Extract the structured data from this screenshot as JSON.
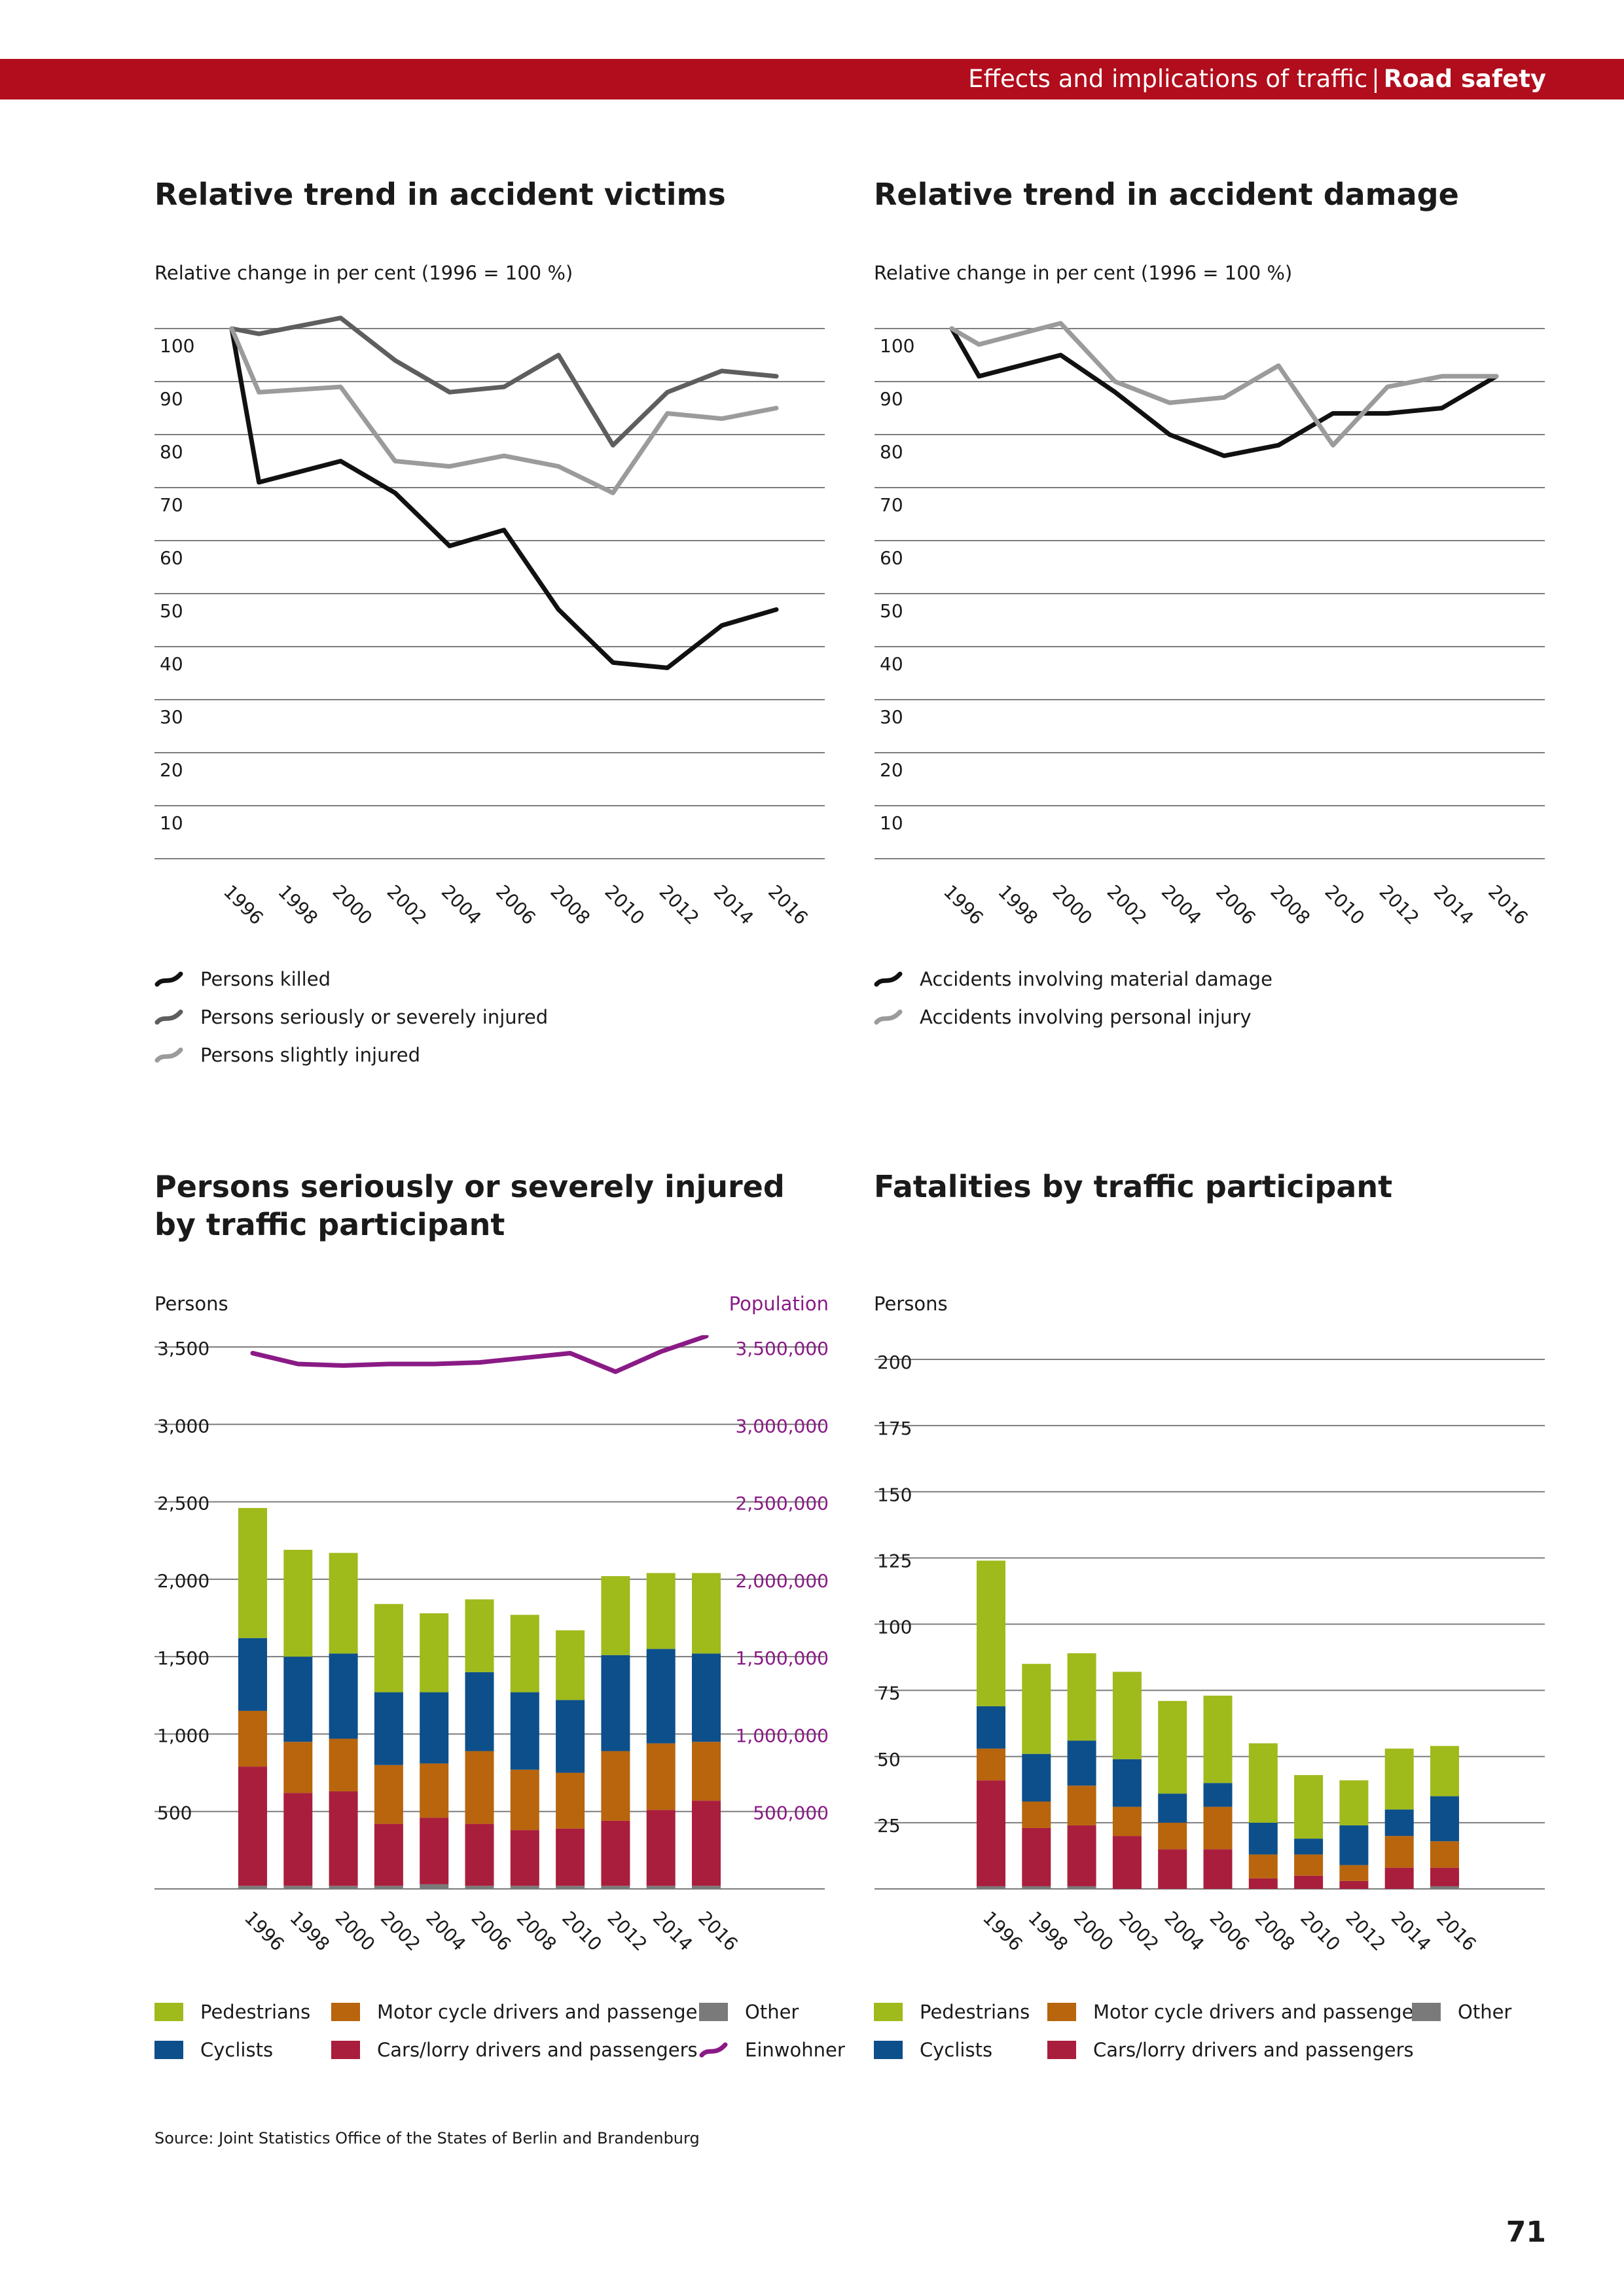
{
  "header": {
    "section": "Effects and implications of traffic",
    "separator": "|",
    "topic": "Road safety"
  },
  "colors": {
    "brand_red": "#b10d1c",
    "pedestrians": "#9fba1b",
    "cyclists": "#0d4f8b",
    "motorcycle": "#b8650d",
    "cars": "#a91e3c",
    "other": "#7a7a7a",
    "population": "#8a1a85",
    "killed": "#111111",
    "serious": "#5e5e5e",
    "slight": "#9b9b9b",
    "grid": "#7d7d7d"
  },
  "panels": {
    "victims": {
      "title": "Relative trend in accident victims",
      "subtitle": "Relative change in per cent (1996 = 100 %)"
    },
    "damage": {
      "title": "Relative trend in accident damage",
      "subtitle": "Relative change in per cent (1996 = 100 %)"
    },
    "injured": {
      "title_line1": "Persons seriously or severely injured",
      "title_line2": "by traffic participant",
      "left_axis_label": "Persons",
      "right_axis_label": "Population"
    },
    "fatalities": {
      "title": "Fatalities by traffic participant",
      "left_axis_label": "Persons"
    }
  },
  "chart_data": [
    {
      "id": "victims",
      "type": "line",
      "title": "Relative trend in accident victims",
      "ylabel": "Relative change in per cent (1996 = 100 %)",
      "ylim": [
        0,
        100
      ],
      "yticks": [
        10,
        20,
        30,
        40,
        50,
        60,
        70,
        80,
        90,
        100
      ],
      "x": [
        "1996",
        "1997",
        "1998",
        "1999",
        "2000",
        "2001",
        "2002",
        "2003",
        "2004",
        "2005",
        "2006",
        "2007",
        "2008",
        "2009",
        "2010",
        "2011",
        "2012",
        "2013",
        "2014",
        "2015",
        "2016"
      ],
      "xtick_labels": [
        "1996",
        "1998",
        "2000",
        "2002",
        "2004",
        "2006",
        "2008",
        "2010",
        "2012",
        "2014",
        "2016"
      ],
      "grid": true,
      "legend_position": "bottom",
      "series": [
        {
          "name": "Persons killed",
          "color": "#111111",
          "values": [
            100,
            71,
            null,
            null,
            75,
            null,
            69,
            null,
            59,
            null,
            62,
            null,
            47,
            null,
            37,
            null,
            36,
            null,
            44,
            null,
            47
          ]
        },
        {
          "name": "Persons seriously or severely injured",
          "color": "#5e5e5e",
          "values": [
            100,
            99,
            null,
            null,
            102,
            null,
            94,
            null,
            88,
            null,
            89,
            null,
            95,
            null,
            78,
            null,
            88,
            null,
            92,
            null,
            91
          ]
        },
        {
          "name": "Persons slightly injured",
          "color": "#9b9b9b",
          "values": [
            100,
            88,
            null,
            null,
            89,
            null,
            75,
            null,
            74,
            null,
            76,
            null,
            74,
            null,
            69,
            null,
            84,
            null,
            83,
            null,
            85
          ]
        }
      ]
    },
    {
      "id": "damage",
      "type": "line",
      "title": "Relative trend in accident damage",
      "ylabel": "Relative change in per cent (1996 = 100 %)",
      "ylim": [
        0,
        100
      ],
      "yticks": [
        10,
        20,
        30,
        40,
        50,
        60,
        70,
        80,
        90,
        100
      ],
      "x": [
        "1996",
        "1997",
        "1998",
        "1999",
        "2000",
        "2001",
        "2002",
        "2003",
        "2004",
        "2005",
        "2006",
        "2007",
        "2008",
        "2009",
        "2010",
        "2011",
        "2012",
        "2013",
        "2014",
        "2015",
        "2016"
      ],
      "xtick_labels": [
        "1996",
        "1998",
        "2000",
        "2002",
        "2004",
        "2006",
        "2008",
        "2010",
        "2012",
        "2014",
        "2016"
      ],
      "grid": true,
      "legend_position": "bottom",
      "series": [
        {
          "name": "Accidents involving material damage",
          "color": "#111111",
          "values": [
            100,
            91,
            null,
            null,
            95,
            null,
            88,
            null,
            80,
            null,
            76,
            null,
            78,
            null,
            84,
            null,
            84,
            null,
            85,
            null,
            91
          ]
        },
        {
          "name": "Accidents involving personal injury",
          "color": "#9b9b9b",
          "values": [
            100,
            97,
            null,
            null,
            101,
            null,
            90,
            null,
            86,
            null,
            87,
            null,
            93,
            null,
            78,
            null,
            89,
            null,
            91,
            null,
            91
          ]
        }
      ]
    },
    {
      "id": "injured",
      "type": "bar",
      "stacked": true,
      "title": "Persons seriously or severely injured by traffic participant",
      "ylabel": "Persons",
      "y2label": "Population",
      "ylim": [
        0,
        3500
      ],
      "yticks": [
        500,
        1000,
        1500,
        2000,
        2500,
        3000,
        3500
      ],
      "ytick_labels": [
        "500",
        "1,000",
        "1,500",
        "2,000",
        "2,500",
        "3,000",
        "3,500"
      ],
      "y2lim": [
        0,
        3500000
      ],
      "y2tick_labels": [
        "500,000",
        "1,000,000",
        "1,500,000",
        "2,000,000",
        "2,500,000",
        "3,000,000",
        "3,500,000"
      ],
      "categories": [
        "1996",
        "1998",
        "2000",
        "2002",
        "2004",
        "2006",
        "2008",
        "2010",
        "2012",
        "2014",
        "2016"
      ],
      "grid": true,
      "legend_position": "bottom",
      "series": [
        {
          "name": "Other",
          "color": "#7a7a7a",
          "values": [
            20,
            20,
            20,
            20,
            30,
            20,
            20,
            20,
            20,
            20,
            20
          ]
        },
        {
          "name": "Cars/lorry drivers and passengers",
          "color": "#a91e3c",
          "values": [
            770,
            600,
            610,
            400,
            430,
            400,
            360,
            370,
            420,
            490,
            550
          ]
        },
        {
          "name": "Motor cycle drivers and passengers",
          "color": "#b8650d",
          "values": [
            360,
            330,
            340,
            380,
            350,
            470,
            390,
            360,
            450,
            430,
            380
          ]
        },
        {
          "name": "Cyclists",
          "color": "#0d4f8b",
          "values": [
            470,
            550,
            550,
            470,
            460,
            510,
            500,
            470,
            620,
            610,
            570
          ]
        },
        {
          "name": "Pedestrians",
          "color": "#9fba1b",
          "values": [
            840,
            690,
            650,
            570,
            510,
            470,
            500,
            450,
            510,
            490,
            520
          ]
        }
      ],
      "line_series": [
        {
          "name": "Einwohner",
          "color": "#8a1a85",
          "axis": "right",
          "values": [
            3460000,
            3390000,
            3380000,
            3390000,
            3390000,
            3400000,
            3430000,
            3460000,
            3340000,
            3470000,
            3570000
          ]
        }
      ]
    },
    {
      "id": "fatalities",
      "type": "bar",
      "stacked": true,
      "title": "Fatalities by traffic participant",
      "ylabel": "Persons",
      "ylim": [
        0,
        200
      ],
      "yticks": [
        25,
        50,
        75,
        100,
        125,
        150,
        175,
        200
      ],
      "categories": [
        "1996",
        "1998",
        "2000",
        "2002",
        "2004",
        "2006",
        "2008",
        "2010",
        "2012",
        "2014",
        "2016"
      ],
      "grid": true,
      "legend_position": "bottom",
      "series": [
        {
          "name": "Other",
          "color": "#7a7a7a",
          "values": [
            1,
            1,
            1,
            0,
            0,
            0,
            0,
            0,
            0,
            0,
            1
          ]
        },
        {
          "name": "Cars/lorry drivers and passengers",
          "color": "#a91e3c",
          "values": [
            40,
            22,
            23,
            20,
            15,
            15,
            4,
            5,
            3,
            8,
            7
          ]
        },
        {
          "name": "Motor cycle drivers and passengers",
          "color": "#b8650d",
          "values": [
            12,
            10,
            15,
            11,
            10,
            16,
            9,
            8,
            6,
            12,
            10
          ]
        },
        {
          "name": "Cyclists",
          "color": "#0d4f8b",
          "values": [
            16,
            18,
            17,
            18,
            11,
            9,
            12,
            6,
            15,
            10,
            17
          ]
        },
        {
          "name": "Pedestrians",
          "color": "#9fba1b",
          "values": [
            55,
            34,
            33,
            33,
            35,
            33,
            30,
            24,
            17,
            23,
            19
          ]
        }
      ]
    }
  ],
  "legends": {
    "victims": [
      "Persons killed",
      "Persons seriously or severely injured",
      "Persons slightly injured"
    ],
    "damage": [
      "Accidents involving material damage",
      "Accidents involving personal injury"
    ],
    "bars": {
      "pedestrians": "Pedestrians",
      "cyclists": "Cyclists",
      "motorcycle": "Motor cycle drivers and passengers",
      "cars": "Cars/lorry drivers and passengers",
      "other": "Other",
      "population": "Einwohner"
    }
  },
  "footer": {
    "source": "Source: Joint Statistics Office of the States of Berlin and Brandenburg",
    "page_number": "71"
  }
}
